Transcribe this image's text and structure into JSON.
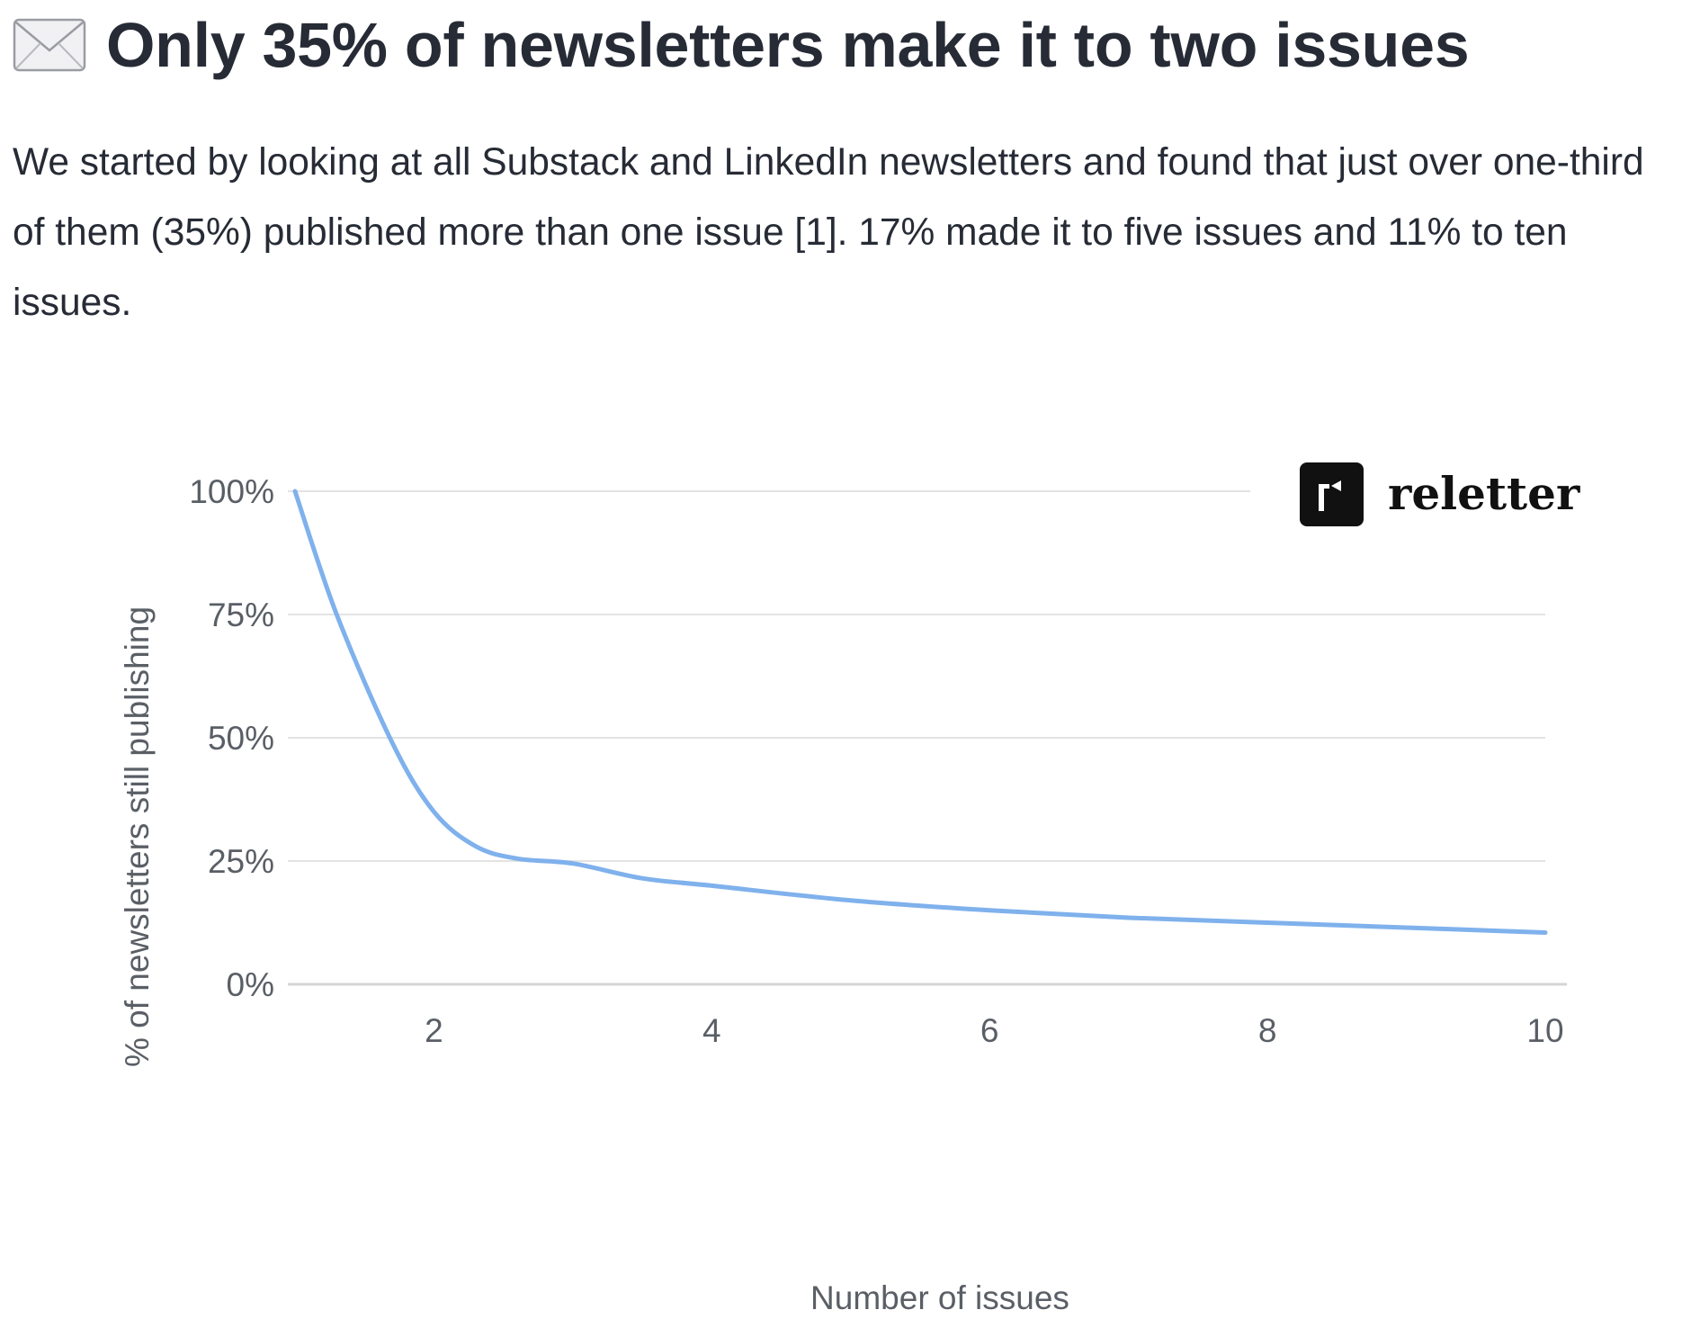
{
  "article": {
    "title": "Only 35% of newsletters make it to two issues",
    "title_icon": "envelope-icon",
    "body": "We started by looking at all Substack and LinkedIn newsletters and found that just over one-third of them (35%) published more than one issue [1]. 17% made it to five issues and 11% to ten issues."
  },
  "logo": {
    "name": "reletter",
    "icon": "reletter-logo-icon"
  },
  "chart_data": {
    "type": "line",
    "title": "",
    "xlabel": "Number of issues",
    "ylabel": "% of newsletters still publishing",
    "xlim": [
      1,
      10
    ],
    "ylim": [
      0,
      100
    ],
    "x_ticks": [
      2,
      4,
      6,
      8,
      10
    ],
    "y_ticks": [
      0,
      25,
      50,
      75,
      100
    ],
    "y_tick_labels": [
      "0%",
      "25%",
      "50%",
      "75%",
      "100%"
    ],
    "grid": "horizontal",
    "line_color": "#7fb1ec",
    "series": [
      {
        "x": [
          1,
          1.3,
          1.7,
          2,
          2.3,
          2.6,
          3,
          3.5,
          4,
          5,
          6,
          7,
          8,
          9,
          10
        ],
        "values": [
          100,
          75,
          49,
          35,
          28,
          25.5,
          24.5,
          21.5,
          20,
          17,
          15,
          13.5,
          12.5,
          11.5,
          10.5
        ]
      }
    ]
  }
}
